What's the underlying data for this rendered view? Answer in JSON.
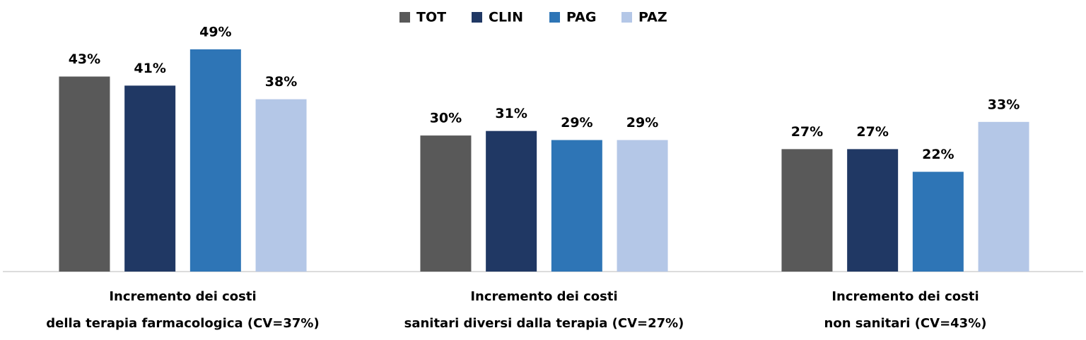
{
  "chart_data": {
    "type": "bar",
    "categories": [
      [
        "Incremento dei costi",
        "della terapia farmacologica (CV=37%)"
      ],
      [
        "Incremento dei costi",
        "sanitari diversi dalla terapia (CV=27%)"
      ],
      [
        "Incremento dei costi",
        "non sanitari (CV=43%)"
      ]
    ],
    "series": [
      {
        "name": "TOT",
        "color": "#595959",
        "values": [
          43,
          30,
          27
        ],
        "value_labels": [
          "43%",
          "30%",
          "27%"
        ]
      },
      {
        "name": "CLIN",
        "color": "#203864",
        "values": [
          41,
          31,
          27
        ],
        "value_labels": [
          "41%",
          "31%",
          "27%"
        ]
      },
      {
        "name": "PAG",
        "color": "#2e75b6",
        "values": [
          49,
          29,
          22
        ],
        "value_labels": [
          "49%",
          "29%",
          "22%"
        ]
      },
      {
        "name": "PAZ",
        "color": "#b4c7e7",
        "values": [
          38,
          29,
          33
        ],
        "value_labels": [
          "38%",
          "29%",
          "33%"
        ]
      }
    ],
    "legend": "top"
  }
}
